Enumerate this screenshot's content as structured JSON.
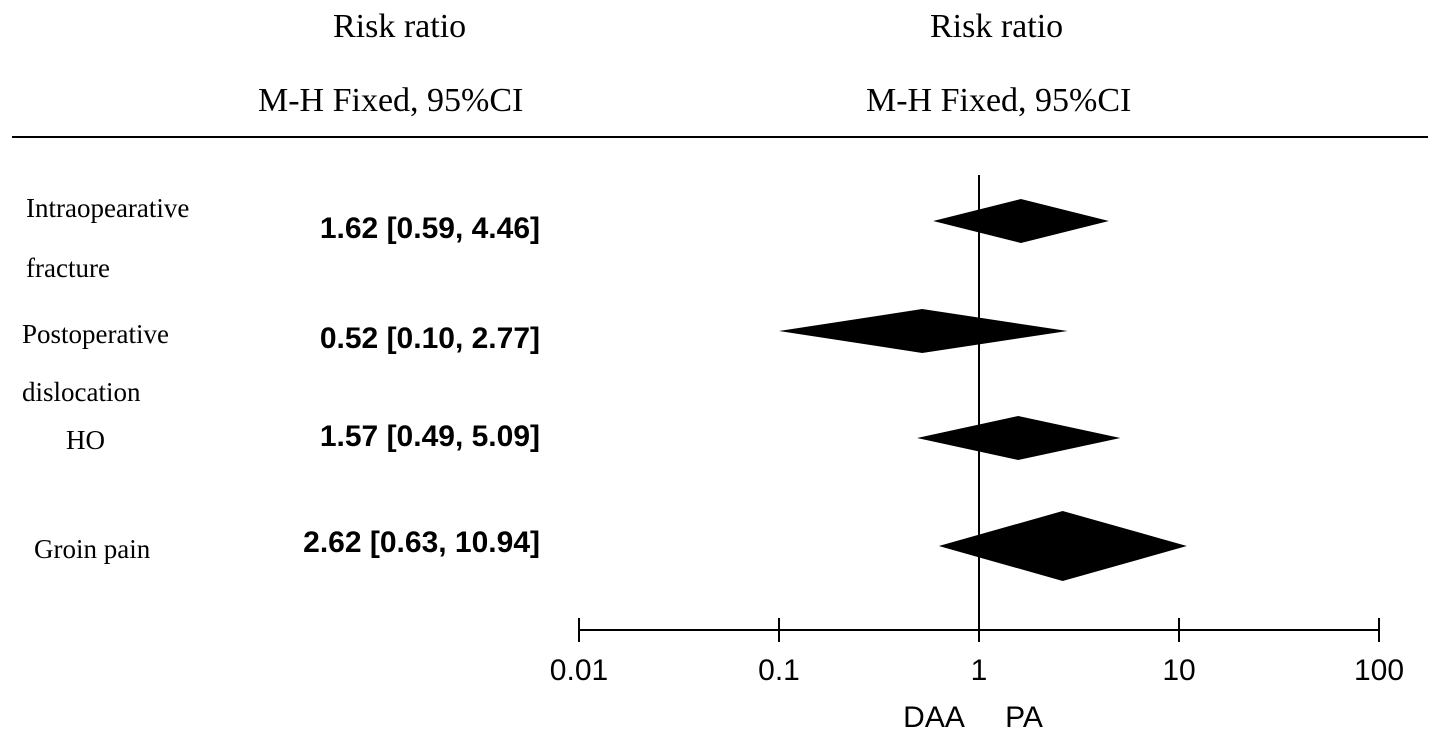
{
  "header": {
    "left_title": "Risk ratio",
    "left_subtitle": "M-H Fixed, 95%CI",
    "right_title": "Risk ratio",
    "right_subtitle": "M-H Fixed, 95%CI"
  },
  "chart_data": {
    "type": "forest",
    "scale": "log",
    "xlim": [
      0.01,
      100
    ],
    "reference_line": 1,
    "xticks": [
      "0.01",
      "0.1",
      "1",
      "10",
      "100"
    ],
    "xlabel_left": "DAA",
    "xlabel_right": "PA",
    "rows": [
      {
        "label": "Intraopearative fracture",
        "estimate_text": "1.62 [0.59, 4.46]",
        "rr": 1.62,
        "ci_low": 0.59,
        "ci_high": 4.46
      },
      {
        "label": "Postoperative dislocation",
        "estimate_text": "0.52 [0.10, 2.77]",
        "rr": 0.52,
        "ci_low": 0.1,
        "ci_high": 2.77
      },
      {
        "label": "HO",
        "estimate_text": "1.57 [0.49, 5.09]",
        "rr": 1.57,
        "ci_low": 0.49,
        "ci_high": 5.09
      },
      {
        "label": "Groin pain",
        "estimate_text": "2.62 [0.63, 10.94]",
        "rr": 2.62,
        "ci_low": 0.63,
        "ci_high": 10.94
      }
    ]
  }
}
